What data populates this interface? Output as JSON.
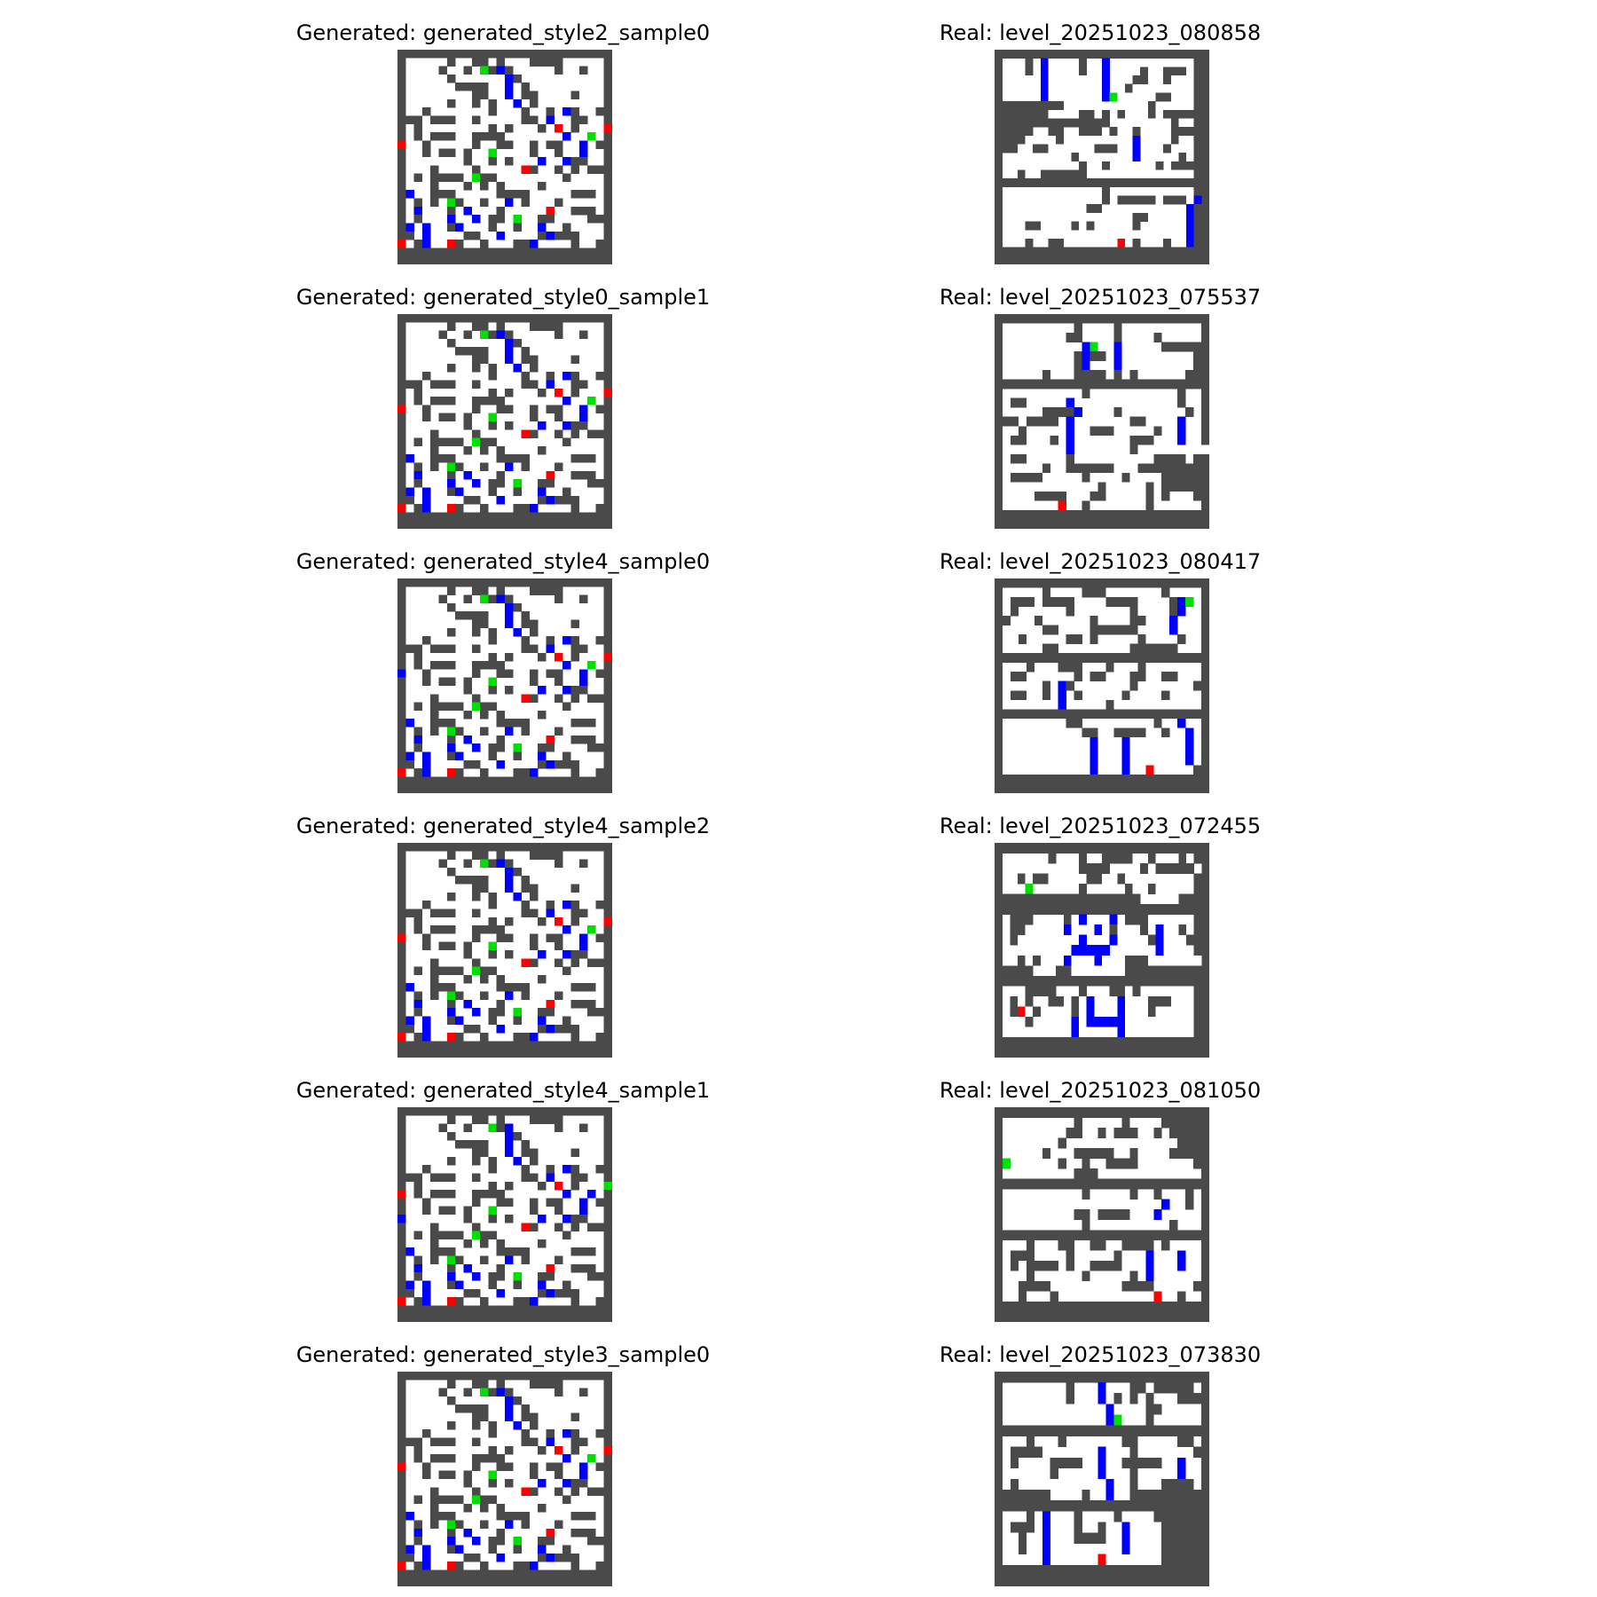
{
  "panels": [
    {
      "id": "generated_style2_sample0",
      "title": "Generated: generated_style2_sample0",
      "kind": "generated",
      "rows": [
        "##########################",
        "#.....#..##.#...####.....#",
        "#....#..#.G#B#.....#..#..#",
        "#.....#......B#..........#",
        "#......####..B.#.........#",
        "#........##..B.##....#...#",
        "#.....#..#.#..B.#........#",
        "#..#.......#...#..#.B#..##",
        "###.###..#.....##.B..##..#",
        "#.#........#.#...#.R.#...R",
        "#.#.###..####.......B..G.#",
        "R..#.....#..##..#.##..B.##",
        "#..#.##.#..G....#..#..B..#",
        "#.......#..#.#...B..B##..#",
        "#...#....#.....R#..#.#.###",
        "#.#.####.G##........#....#",
        "#...#...#.#.#....#.......#",
        "#B..###.....####.....###.#",
        "#.#.#.G#..#..B.#...#.....#",
        "#.B...#.B...#.....R..###.#",
        "#.#...B..B.##.G..##....###",
        "#B.B..#B...#..#..B..#....#",
        "##.B....##..B....#B###...#",
        "R.#B..R#..#...##B....#..##",
        "##########################",
        "##########################"
      ]
    },
    {
      "id": "level_20251023_080858",
      "title": "Real: level_20251023_080858",
      "kind": "real",
      "rows": [
        "##########################",
        "#...#.B....#..B...........#",
        "#...#.B....#..B....#..###.#",
        "#.....B.......B...##..#...#",
        "#.....B.......B..#........#",
        "#.....B.......BG.....##...#",
        "#########...........#.....#",
        "#######....##.#.#...#.#####",
        "###############........#..#",
        "#####..##..###.#..#....####",
        "####....#.........B....#..#",
        "###..##......###..B...#...#",
        "#.........#.......B.....#.#",
        "#..........#..#......#.####",
        "#..#..######..............#",
        "##########################",
        "#.............#...........#",
        "#.............#.#####.###.B#",
        "#...........##...........B#",
        "#.................##.....B#",
        "#...##....#.#.....#......B#",
        "#........................B#",
        "#...#..##.......R.#...#..B#",
        "##########################",
        "##########################"
      ]
    },
    {
      "id": "generated_style0_sample1",
      "title": "Generated: generated_style0_sample1",
      "kind": "generated",
      "rows": [
        "##########################",
        "#.....#..##.#...####.....#",
        "#....#..#.G#B#.....#..#..#",
        "#.....#......B#..........#",
        "#......####..B.#.........#",
        "#........##..B.##....#...#",
        "#.....#..#.#..B.#........#",
        "#..#.......#...#..#.B#..##",
        "###.###..#.....##.B..##..#",
        "#.#........#.#...#.R.#...R",
        "#.#.###..####.......B..G.#",
        "R..#.....#..##..#.##..B.##",
        "#..#.##.#..G....#..#..B..#",
        "#.......#..#.#...B..B##..#",
        "#...#....#.....R#..#.#.###",
        "#.#.####.G##........#....#",
        "#...#...#.#.#....#.......#",
        "#B..###.....####.....###.#",
        "#.#.#.G#..#..B.#...#.....#",
        "#.B...#.B...#.....R..###.#",
        "#.#...B..B.##.G..##....###",
        "#B.B..#B...#..#..B..#....#",
        "##.B....##..B....#B###...#",
        "R.#B..R#..#...##B....#..##",
        "##########################",
        "##########################"
      ]
    },
    {
      "id": "level_20251023_075537",
      "title": "Real: level_20251023_075537",
      "kind": "real",
      "rows": [
        "##########################",
        "#.........#....#..........#",
        "#........##....#....#.....#",
        "#..........BG..B.....######",
        "#.........#B##.B.........##",
        "#.........#B...B.........##",
        "#.....#...####.#.#......###",
        "##########################",
        "#..........#...........#..#",
        "#.##.....B.............#..#",
        "#.....####B....#........#.#",
        "###.####.B.......##....B..#",
        "#..#.....B..###.....#..B..#",
        "#.##...#.B.......###...B..#",
        "#........B.......#.........",
        "#.##.....#..........####.##",
        "#.....#..######...#########",
        "#.####.....#....#....######",
        "#............#.....#.######",
        "#....####...##.....#.#...##",
        "#.......R..#.......#......#",
        "##########################",
        "##########################"
      ]
    },
    {
      "id": "generated_style4_sample0",
      "title": "Generated: generated_style4_sample0",
      "kind": "generated",
      "rows": [
        "##########################",
        "#.....#..##.#...####.....#",
        "#....#..#.G#B#.....#..#..#",
        "#.....#......B#..........#",
        "#......####..B.#.........#",
        "#........##..B.##....#...#",
        "#.....#..#.#..B.#........#",
        "#..#.......#...#..#.B#..##",
        "###.###..#.....##.B..##..#",
        "#.#........#.#...#.R.#...R",
        "#.#.###..####.......B..G.#",
        "B..#.....#..##..#.##..B.##",
        "#..#.##.#..G....#..#..B..#",
        "#.......#..#.#...B..B##..#",
        "#...#....#.....R#..#.#.###",
        "#.#.####.G##........#....#",
        "#...#...#.#.#....#.......#",
        "#B..###.....####.....###.#",
        "#.#.#.G#..#..B.#...#.....#",
        "#.B...#.B...#.....R..###.#",
        "#.#...B..B.##.G..##....###",
        "#B.B..#B...#..#..B..#....#",
        "##.B....##..B....#B###...#",
        "R.#B..R#..#...##B....#..##",
        "##########################",
        "##########################"
      ]
    },
    {
      "id": "level_20251023_080417",
      "title": "Real: level_20251023_080417",
      "kind": "real",
      "rows": [
        "##########################",
        "#.....#....###.......#....#",
        "#.###.####....####....#BG.#",
        "#.#......#.......#....#B..#",
        "##...#......#....##...B...#",
        "#.....##....######....B...#",
        "#..#.....##.#.....#....#..#",
        "#.....##.........######...#",
        "##########################",
        "#...#...###...#...#.......#",
        "#.##......#.##...##..##...#",
        "#.....#.B#.......#.......##",
        "#.##..#.B.#.....#....#....#",
        "#.......B.....#...........#",
        "##########################",
        "#........##.........#..B..#",
        "#..........##..####..#..B.#",
        "#...........B...B.......B.#",
        "#...........B...B.......B.#",
        "#...........B...B.......B.#",
        "#...........B...B..R.....##",
        "##########################",
        "##########################"
      ]
    },
    {
      "id": "generated_style4_sample2",
      "title": "Generated: generated_style4_sample2",
      "kind": "generated",
      "rows": [
        "##########################",
        "#.....#..##.#...####.....#",
        "#....#..#.G#B#.....#..#..#",
        "#.....#......B#..........#",
        "#......####..B.#.........#",
        "#........##..B.##....#...#",
        "#.....#..#.#..B.#........#",
        "#..#.......#...#..#.B#..##",
        "###.###..#.....##.B..##..#",
        "#.#........#.#...#.R.#...R",
        "#.#.###..####.......B..G.#",
        "R..#.....#..##..#.##..B.##",
        "#..#.##.#..G....#..#..B..#",
        "#.......#..#.#...B..B##..#",
        "#...#....#.....R#..#.#.###",
        "#.#.####.G##........#....#",
        "#...#...#.#.#....#.......#",
        "#B..###.....####.....###.#",
        "#.#.#.G#..#..B.#...#.....#",
        "#.B...#.B...#.....R..###.#",
        "#.#...B..B.##.G..##....###",
        "#B.B..#B...#..#..B..#....#",
        "##.B....##..B....#B###...#",
        "R.#B..R#..#...##B....#..##",
        "##########################",
        "##########################"
      ]
    },
    {
      "id": "level_20251023_072455",
      "title": "Real: level_20251023_072455",
      "kind": "real",
      "rows": [
        "##########################",
        "#......#...#..####..#...#.#",
        "#..........####....#.#####.",
        "#..#.##.....##..#.........#",
        "#...G......#.....#..#.....#",
        "###################.....###",
        "##########################",
        "#.###....#.B...B.###......#",
        "#.##.....B...B.#...#.B..#.#",
        "#.#........B...B....#B...##",
        "#.........BBBBB......B....#",
        "#..#.#...B...B...###.......#",
        "#####...##.......##########",
        "##########################",
        "#...####...#...##.#.......#",
        "#.#.#..##.#.B...B...###...#",
        "#.#R.#....#.B...B...#.....#",
        "#...#.....B.BBBBB.........#",
        "#.........B.....B.........#",
        "##########################",
        "##########################"
      ]
    },
    {
      "id": "generated_style4_sample1",
      "title": "Generated: generated_style4_sample1",
      "kind": "generated",
      "rows": [
        "##########################",
        "#.....#..##.#...####.....#",
        "#....#..#..G#B.....#..#..#",
        "#.....#......B#..........#",
        "#......####..B.#.........#",
        "#........##..B.##....#...#",
        "#.....#..#.#..B.#........#",
        "#..#.......#...#..#.B#..##",
        "###.###..#.....##.B..##..#",
        "#.#........#.#...#.R.#...G",
        "R.#.###..####.......B..B.#",
        "#..#.....#..##..#.##..B.##",
        "#..#.##.#..G....#..#..B..#",
        "B.......#..#.#...B..B##..#",
        "#...#....#.....R#..#.#.###",
        "#.#.####.G##........#....#",
        "#...#...#.#.#....#.......#",
        "#B..###.....####.....###.#",
        "#.#.#.G#..#..B.#...#.....#",
        "#.B...#.B...#.....R..###.#",
        "#.#...B..B.##.G..##....###",
        "#B.B..#B...#..#..B..#....#",
        "##.B....##..B....#B###...#",
        "R.#B..R#..#...##B....#..##",
        "##########################",
        "##########################"
      ]
    },
    {
      "id": "level_20251023_081050",
      "title": "Real: level_20251023_081050",
      "kind": "real",
      "rows": [
        "##########################",
        "#.........#.....#....######",
        "#........##..#.###..#.####",
        "#.......#..............###",
        "#.....#...#####..#....####",
        "#G......#..#..####.......#",
        "#.........###.............#",
        "##########################",
        "#..........#.....#..#...#.#",
        "#....................B..#.#",
        "#.........##.####...B.....#",
        "#..........#..........#...#",
        "##########################",
        "#...#...##..##..####.#....#",
        "#.###....#.....#...B...B..#",
        "#.#.####.#..####...B...B..#",
        "#...#......#.....#.B......#",
        "#..####.........####.....##",
        "#..#...#............R..#..#",
        "##########################",
        "##########################"
      ]
    },
    {
      "id": "generated_style3_sample0",
      "title": "Generated: generated_style3_sample0",
      "kind": "generated",
      "rows": [
        "##########################",
        "#.....#..##.#...####.....#",
        "#....#..#.G#B#.....#..#..#",
        "#.....#......B#..........#",
        "#......####..B.#.........#",
        "#........##..B.##....#...#",
        "#.....#..#.#..B.#........#",
        "#..#.......#...#..#.B#..##",
        "###.###..#.....##.B..##..#",
        "#.#........#.#...#.R.#...R",
        "#.#.###..####.......B..G.#",
        "R..#.....#..##..#.##..B.##",
        "#..#.##.#..G....#..#..B..#",
        "#.......#..#.#...B..B##..#",
        "#...#....#.....R#..#.#.###",
        "#.#.####.G##........#....#",
        "#...#...#.#.#....#.......#",
        "#B..###.....####.....###.#",
        "#.#.#.G#..#..B.#...#.....#",
        "#.B...#.B...#.....R..###.#",
        "#.#...B..B.##.G..##....###",
        "#B.B..#B...#..#..B..#....#",
        "##.B....##..B....#B###...#",
        "R.#B..R#..#...##B....#..##",
        "##########################",
        "##########################"
      ]
    },
    {
      "id": "level_20251023_073830",
      "title": "Real: level_20251023_073830",
      "kind": "real",
      "rows": [
        "##########################",
        "#........#...B...##.#####.#",
        "#........#...B.#.#.#...####",
        "#.............B....##.....#",
        "#.............BG...#......#",
        "###########################",
        "#...#...#.......##.....##.#",
        "#.####.......B...#.......#",
        "#.#....####..B..#####..B..#",
        "#......#.....B...#.....B..#",
        "#.#...........B..#...####.#",
        "#######....#..B..##########",
        "##########################",
        "#...#.B...#....#....#######",
        "#.###.B...#..#..B....######",
        "#..#..B...####..B....######",
        "#..#..B.........B....######",
        "#.....B......R.......######",
        "##########################",
        "##########################"
      ]
    }
  ],
  "legend_colors": {
    "wall": "#4a4a4a",
    "floor": "#ffffff",
    "green": "#00e000",
    "blue": "#0000ff",
    "red": "#ff0000"
  }
}
